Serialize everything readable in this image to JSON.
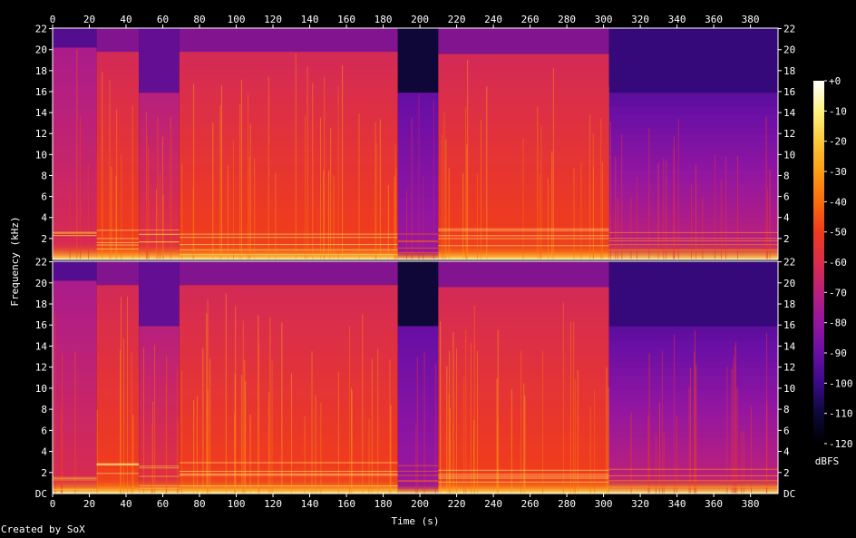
{
  "chart_data": {
    "type": "heatmap",
    "title": "",
    "xlabel": "Time (s)",
    "ylabel": "Frequency (kHz)",
    "xlim": [
      0,
      395
    ],
    "ylim": [
      0,
      22.05
    ],
    "x_ticks": [
      0,
      20,
      40,
      60,
      80,
      100,
      120,
      140,
      160,
      180,
      200,
      220,
      240,
      260,
      280,
      300,
      320,
      340,
      360,
      380
    ],
    "y_ticks": [
      2,
      4,
      6,
      8,
      10,
      12,
      14,
      16,
      18,
      20,
      22
    ],
    "y_tick_bottom_label": "DC",
    "y_tick_top_label": "22",
    "channels": 2,
    "colorbar": {
      "label": "dBFS",
      "ticks": [
        "+0",
        "-10",
        "-20",
        "-30",
        "-40",
        "-50",
        "-60",
        "-70",
        "-80",
        "-90",
        "-100",
        "-110",
        "-120"
      ],
      "range": [
        -120,
        0
      ],
      "colors": [
        "#000000",
        "#0c0838",
        "#3a0a86",
        "#6a0fa5",
        "#9316a0",
        "#b9207c",
        "#d92d4d",
        "#ef3b1e",
        "#f86d0d",
        "#fc9d16",
        "#fdc83a",
        "#fef281",
        "#ffffff"
      ]
    },
    "segments": [
      {
        "t0": 0,
        "t1": 24,
        "level": "moderate",
        "cutoff_khz": 20.2
      },
      {
        "t0": 24,
        "t1": 47,
        "level": "loud",
        "cutoff_khz": 19.8
      },
      {
        "t0": 47,
        "t1": 69,
        "level": "medium",
        "cutoff_khz": 15.9
      },
      {
        "t0": 69,
        "t1": 188,
        "level": "loud",
        "cutoff_khz": 19.8
      },
      {
        "t0": 188,
        "t1": 210,
        "level": "quiet",
        "cutoff_khz": 15.9
      },
      {
        "t0": 210,
        "t1": 303,
        "level": "loud",
        "cutoff_khz": 19.6
      },
      {
        "t0": 303,
        "t1": 395,
        "level": "fading",
        "cutoff_khz": 15.9
      }
    ]
  },
  "footer": {
    "credit": "Created by SoX"
  }
}
